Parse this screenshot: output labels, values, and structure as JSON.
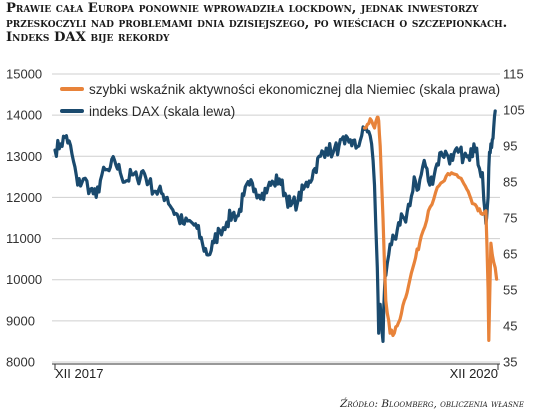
{
  "title": "Prawie cała Europa ponownie wprowadziła lockdown, jednak inwestorzy przeskoczyli nad problemami dnia dzisiejszego, po wieściach o szczepionkach. Indeks DAX bije rekordy",
  "source": "Źródło: Bloomberg, obliczenia własne",
  "chart_data": {
    "type": "line",
    "x_labels": [
      "XII 2017",
      "XII 2020"
    ],
    "y_left": {
      "min": 8000,
      "max": 15000,
      "ticks": [
        8000,
        9000,
        10000,
        11000,
        12000,
        13000,
        14000,
        15000
      ]
    },
    "y_right": {
      "min": 35,
      "max": 115,
      "ticks": [
        35,
        45,
        55,
        65,
        75,
        85,
        95,
        105,
        115
      ]
    },
    "grid": true,
    "legend_position": "top-left",
    "series": [
      {
        "name": "szybki wskaźnik aktywności ekonomicznej dla Niemiec (skala prawa)",
        "axis": "right",
        "color": "#e8833a",
        "x": [
          2020.1,
          2020.12,
          2020.15,
          2020.17,
          2020.19,
          2020.2,
          2020.21,
          2020.23,
          2020.25,
          2020.28,
          2020.31,
          2020.34,
          2020.38,
          2020.42,
          2020.46,
          2020.5,
          2020.55,
          2020.6,
          2020.65,
          2020.7,
          2020.75,
          2020.78,
          2020.82,
          2020.86,
          2020.9,
          2020.93,
          2020.955,
          2020.97,
          2020.975,
          2020.99,
          2021.03
        ],
        "values": [
          100,
          101,
          102,
          100,
          103,
          102,
          95,
          75,
          52,
          43,
          43,
          46,
          52,
          58,
          64,
          70,
          77,
          82,
          85,
          87,
          87,
          86,
          83,
          79,
          77,
          76,
          77,
          55,
          41,
          68,
          58
        ]
      },
      {
        "name": "indeks DAX (skala lewa)",
        "axis": "left",
        "color": "#1a4a6e",
        "x": [
          2017.92,
          2017.96,
          2018.0,
          2018.04,
          2018.08,
          2018.12,
          2018.17,
          2018.21,
          2018.25,
          2018.3,
          2018.34,
          2018.38,
          2018.42,
          2018.46,
          2018.5,
          2018.54,
          2018.58,
          2018.63,
          2018.67,
          2018.71,
          2018.75,
          2018.79,
          2018.83,
          2018.88,
          2018.92,
          2018.96,
          2019.0,
          2019.04,
          2019.08,
          2019.13,
          2019.17,
          2019.21,
          2019.25,
          2019.29,
          2019.33,
          2019.38,
          2019.42,
          2019.46,
          2019.5,
          2019.54,
          2019.58,
          2019.63,
          2019.67,
          2019.71,
          2019.75,
          2019.79,
          2019.83,
          2019.88,
          2019.92,
          2019.96,
          2020.0,
          2020.04,
          2020.08,
          2020.11,
          2020.13,
          2020.15,
          2020.17,
          2020.19,
          2020.2,
          2020.21,
          2020.22,
          2020.23,
          2020.24,
          2020.25,
          2020.27,
          2020.29,
          2020.31,
          2020.33,
          2020.36,
          2020.39,
          2020.42,
          2020.45,
          2020.48,
          2020.52,
          2020.56,
          2020.6,
          2020.64,
          2020.68,
          2020.72,
          2020.76,
          2020.8,
          2020.84,
          2020.87,
          2020.89,
          2020.91,
          2020.93,
          2020.95,
          2020.96,
          2020.97,
          2020.98,
          2020.99,
          2021.0,
          2021.01,
          2021.02
        ],
        "values": [
          13150,
          13300,
          13500,
          13050,
          12300,
          12450,
          12200,
          12000,
          12550,
          12650,
          12900,
          12600,
          12400,
          12550,
          12450,
          12650,
          12350,
          12150,
          12100,
          12000,
          11700,
          11500,
          11350,
          11400,
          11250,
          10850,
          10600,
          10900,
          11200,
          11400,
          11600,
          11550,
          12050,
          12300,
          12200,
          12100,
          12250,
          12350,
          12450,
          12100,
          11800,
          11900,
          12200,
          12400,
          12700,
          13000,
          13200,
          13100,
          13250,
          13300,
          13400,
          13200,
          13500,
          13700,
          13600,
          13300,
          12300,
          10300,
          8700,
          9400,
          9000,
          8500,
          9700,
          10100,
          10600,
          10850,
          11000,
          11200,
          11600,
          11400,
          11800,
          12500,
          12200,
          12900,
          12300,
          12700,
          13100,
          13050,
          12900,
          13100,
          13000,
          12900,
          13300,
          13200,
          12700,
          12600,
          11600,
          11500,
          12000,
          13100,
          13300,
          13400,
          13700,
          14100
        ]
      }
    ]
  }
}
